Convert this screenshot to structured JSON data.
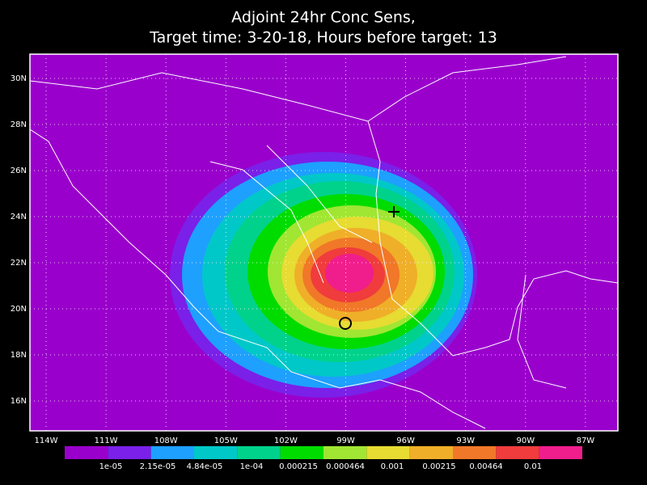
{
  "title": {
    "line1": "Adjoint 24hr Conc Sens,",
    "line2": "Target time: 3-20-18, Hours before target: 13"
  },
  "map": {
    "background": "#9a00cc",
    "lat_labels": [
      "30N",
      "28N",
      "26N",
      "24N",
      "22N",
      "20N",
      "18N",
      "16N"
    ],
    "lon_labels": [
      "114W",
      "111W",
      "108W",
      "105W",
      "102W",
      "99W",
      "96W",
      "93W",
      "90W",
      "87W"
    ]
  },
  "colorbar": {
    "colors": [
      "#9a00cc",
      "#7a20e8",
      "#1ea0ff",
      "#00c8c8",
      "#00d28c",
      "#00dc00",
      "#a0e632",
      "#e6dc32",
      "#f0af28",
      "#f07828",
      "#f03c3c",
      "#f01e8c"
    ],
    "labels": [
      "1e-05",
      "2.15e-05",
      "4.84e-05",
      "1e-04",
      "0.000215",
      "0.000464",
      "0.001",
      "0.00215",
      "0.00464",
      "0.01"
    ]
  }
}
